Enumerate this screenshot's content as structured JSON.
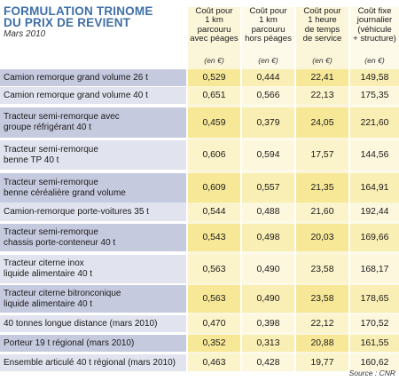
{
  "title_lines": [
    "FORMULATION TRINOME",
    "DU PRIX DE REVIENT"
  ],
  "subtitle": "Mars 2010",
  "columns": [
    {
      "lines": [
        "Coût pour",
        "1 km",
        "parcouru",
        "avec péages"
      ],
      "unit": "(en €)"
    },
    {
      "lines": [
        "Coût pour",
        "1 km",
        "parcouru",
        "hors péages"
      ],
      "unit": "(en €)"
    },
    {
      "lines": [
        "Coût pour",
        "1 heure",
        "de temps",
        "de service"
      ],
      "unit": "(en €)"
    },
    {
      "lines": [
        "Coût fixe",
        "journalier",
        "(véhicule",
        "+ structure)"
      ],
      "unit": "(en €)"
    }
  ],
  "rows": [
    {
      "label": [
        "Camion remorque grand volume 26 t"
      ],
      "values": [
        "0,529",
        "0,444",
        "22,41",
        "149,58"
      ]
    },
    {
      "label": [
        "Camion remorque grand volume 40 t"
      ],
      "values": [
        "0,651",
        "0,566",
        "22,13",
        "175,35"
      ]
    },
    {
      "label": [
        "Tracteur semi-remorque avec",
        "groupe réfrigérant 40 t"
      ],
      "values": [
        "0,459",
        "0,379",
        "24,05",
        "221,60"
      ]
    },
    {
      "label": [
        "Tracteur semi-remorque",
        "benne TP 40 t"
      ],
      "values": [
        "0,606",
        "0,594",
        "17,57",
        "144,56"
      ]
    },
    {
      "label": [
        "Tracteur semi-remorque",
        "benne céréalière grand volume"
      ],
      "values": [
        "0,609",
        "0,557",
        "21,35",
        "164,91"
      ]
    },
    {
      "label": [
        "Camion-remorque porte-voitures 35 t"
      ],
      "values": [
        "0,544",
        "0,488",
        "21,60",
        "192,44"
      ]
    },
    {
      "label": [
        "Tracteur semi-remorque",
        "chassis porte-conteneur 40 t"
      ],
      "values": [
        "0,543",
        "0,498",
        "20,03",
        "169,66"
      ]
    },
    {
      "label": [
        "Tracteur citerne inox",
        "liquide alimentaire 40 t"
      ],
      "values": [
        "0,563",
        "0,490",
        "23,58",
        "168,17"
      ]
    },
    {
      "label": [
        "Tracteur citerne bitronconique",
        "liquide alimentaire 40 t"
      ],
      "values": [
        "0,563",
        "0,490",
        "23,58",
        "178,65"
      ]
    },
    {
      "label": [
        "40 tonnes longue distance (mars 2010)"
      ],
      "values": [
        "0,470",
        "0,398",
        "22,12",
        "170,52"
      ]
    },
    {
      "label": [
        "Porteur 19 t régional (mars 2010)"
      ],
      "values": [
        "0,352",
        "0,313",
        "20,88",
        "161,55"
      ]
    },
    {
      "label": [
        "Ensemble articulé 40 t régional (mars 2010)"
      ],
      "values": [
        "0,463",
        "0,428",
        "19,77",
        "160,62"
      ]
    }
  ],
  "source": "Source : CNR",
  "colors": {
    "title": "#3e6fa8",
    "label_bg": "#c6cadf",
    "value_bg": "#f7e898"
  }
}
